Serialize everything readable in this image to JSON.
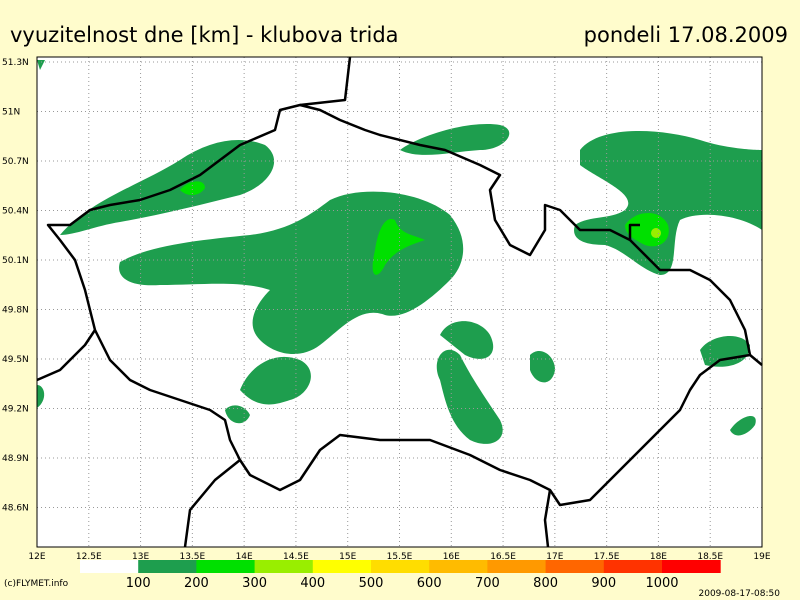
{
  "header": {
    "title": "vyuzitelnost dne [km] - klubova trida",
    "date": "pondeli 17.08.2009"
  },
  "map": {
    "lat_labels": [
      "51.3N",
      "51N",
      "50.7N",
      "50.4N",
      "50.1N",
      "49.8N",
      "49.5N",
      "49.2N",
      "48.9N",
      "48.6N"
    ],
    "lon_labels": [
      "12E",
      "12.5E",
      "13E",
      "13.5E",
      "14E",
      "14.5E",
      "15E",
      "15.5E",
      "16E",
      "16.5E",
      "17E",
      "17.5E",
      "18E",
      "18.5E",
      "19E"
    ]
  },
  "legend": {
    "colors": [
      "#ffffff",
      "#1e9e4e",
      "#00e000",
      "#99ee00",
      "#ffff00",
      "#ffdd00",
      "#ffbb00",
      "#ff9900",
      "#ff6600",
      "#ff3300",
      "#ff0000"
    ],
    "labels": [
      "100",
      "200",
      "300",
      "400",
      "500",
      "600",
      "700",
      "800",
      "900",
      "1000"
    ]
  },
  "footer": {
    "credit": "(c)FLYMET.info",
    "timestamp": "2009-08-17-08:50"
  }
}
